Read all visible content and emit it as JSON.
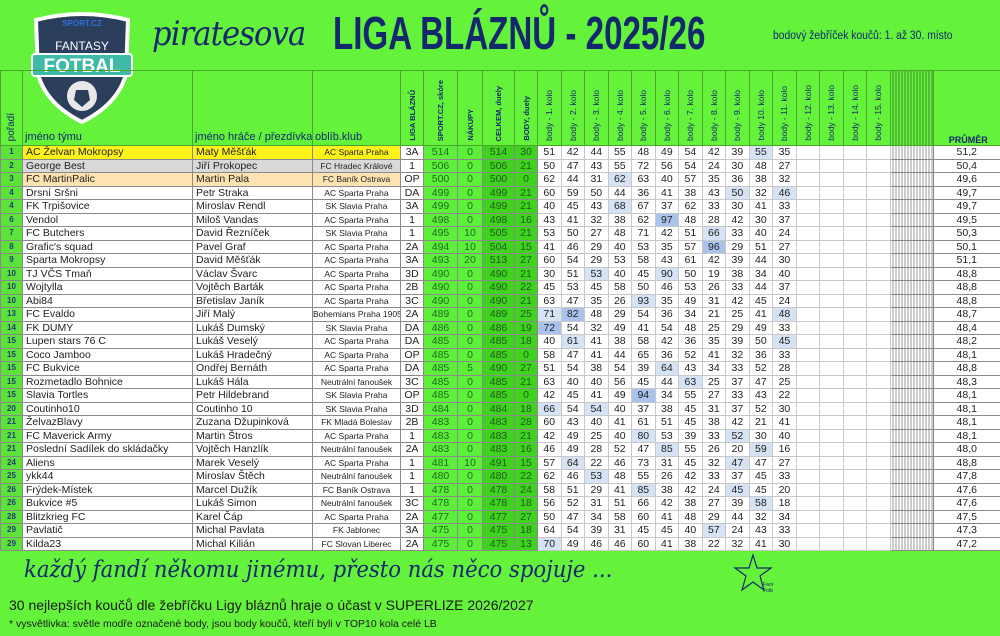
{
  "logo": {
    "top": "SPORT.CZ",
    "mid": "FANTASY",
    "main": "FOTBAL"
  },
  "brand": "piratesova",
  "title": "LIGA BLÁZNŮ -  2025/26",
  "subtitle": "bodový žebříček koučů: 1. až 30. místo",
  "headers": {
    "rank": "pořadí",
    "team": "jméno týmu",
    "player": "jméno hráče / přezdívka",
    "club": "oblíb.klub",
    "liga": "LIGA BLÁZNŮ",
    "sport": "SPORT.CZ, skóre",
    "nakupy": "NÁKUPY",
    "celkem": "CELKEM, duely",
    "body": "BODY, duely",
    "rounds": [
      "body - 1. kolo",
      "body - 2. kolo",
      "body - 3. kolo",
      "body - 4. kolo",
      "body - 5. kolo",
      "body - 6. kolo",
      "body - 7. kolo",
      "body - 8. kolo",
      "body - 9. kolo",
      "body 10. kolo",
      "body - 11. kolo",
      "body - 12. kolo",
      "body - 13. kolo",
      "body - 14. kolo",
      "body - 15. kolo"
    ],
    "avg": "PRŮMĚR"
  },
  "colors": {
    "background": "#64f23b",
    "title": "#14286e",
    "highlight_light": "#d5e3f5",
    "highlight_dark": "#a9c3ec",
    "first": "#fff31a",
    "second": "#d9d9d9",
    "third": "#fde3b0"
  },
  "rows": [
    {
      "rank": "1",
      "team": "AC Želvan Mokropsy",
      "player": "Maty Měšťák",
      "club": "AC Sparta Praha",
      "liga": "3A",
      "sport": "514",
      "nakupy": "0",
      "celkem": "514",
      "body": "30",
      "rounds": [
        "51",
        "42",
        "44",
        "55",
        "48",
        "49",
        "54",
        "42",
        "39",
        "55",
        "35"
      ],
      "avg": "51,2",
      "light": [
        10
      ],
      "dark": []
    },
    {
      "rank": "2",
      "team": "George Best",
      "player": "Jiří Prokopec",
      "club": "FC Hradec Králové",
      "liga": "1",
      "sport": "506",
      "nakupy": "0",
      "celkem": "506",
      "body": "21",
      "rounds": [
        "50",
        "47",
        "43",
        "55",
        "72",
        "56",
        "54",
        "24",
        "30",
        "48",
        "27"
      ],
      "avg": "50,4",
      "light": [],
      "dark": []
    },
    {
      "rank": "3",
      "team": "FC MartinPalic",
      "player": "Martin Pala",
      "club": "FC Baník Ostrava",
      "liga": "OP",
      "sport": "500",
      "nakupy": "0",
      "celkem": "500",
      "body": "0",
      "rounds": [
        "62",
        "44",
        "31",
        "62",
        "63",
        "40",
        "57",
        "35",
        "36",
        "38",
        "32"
      ],
      "avg": "49,6",
      "light": [
        4
      ],
      "dark": []
    },
    {
      "rank": "4",
      "team": "Drsní Sršni",
      "player": "Petr Straka",
      "club": "AC Sparta Praha",
      "liga": "DA",
      "sport": "499",
      "nakupy": "0",
      "celkem": "499",
      "body": "21",
      "rounds": [
        "60",
        "59",
        "50",
        "44",
        "36",
        "41",
        "38",
        "43",
        "50",
        "32",
        "46"
      ],
      "avg": "49,7",
      "light": [
        9,
        11
      ],
      "dark": []
    },
    {
      "rank": "4",
      "team": "FK Trpišovice",
      "player": "Miroslav Rendl",
      "club": "SK Slavia Praha",
      "liga": "3A",
      "sport": "499",
      "nakupy": "0",
      "celkem": "499",
      "body": "21",
      "rounds": [
        "40",
        "45",
        "43",
        "68",
        "67",
        "37",
        "62",
        "33",
        "30",
        "41",
        "33"
      ],
      "avg": "49,7",
      "light": [
        4
      ],
      "dark": []
    },
    {
      "rank": "6",
      "team": "Vendol",
      "player": "Miloš Vandas",
      "club": "AC Sparta Praha",
      "liga": "1",
      "sport": "498",
      "nakupy": "0",
      "celkem": "498",
      "body": "16",
      "rounds": [
        "43",
        "41",
        "32",
        "38",
        "62",
        "97",
        "48",
        "28",
        "42",
        "30",
        "37"
      ],
      "avg": "49,5",
      "light": [],
      "dark": [
        6
      ]
    },
    {
      "rank": "7",
      "team": "FC Butchers",
      "player": "David Řezníček",
      "club": "SK Slavia Praha",
      "liga": "1",
      "sport": "495",
      "nakupy": "10",
      "celkem": "505",
      "body": "21",
      "rounds": [
        "53",
        "50",
        "27",
        "48",
        "71",
        "42",
        "51",
        "66",
        "33",
        "40",
        "24"
      ],
      "avg": "50,3",
      "light": [
        8
      ],
      "dark": []
    },
    {
      "rank": "8",
      "team": "Grafic's squad",
      "player": "Pavel Graf",
      "club": "AC Sparta Praha",
      "liga": "2A",
      "sport": "494",
      "nakupy": "10",
      "celkem": "504",
      "body": "15",
      "rounds": [
        "41",
        "46",
        "29",
        "40",
        "53",
        "35",
        "57",
        "96",
        "29",
        "51",
        "27"
      ],
      "avg": "50,1",
      "light": [],
      "dark": [
        8
      ]
    },
    {
      "rank": "9",
      "team": "Sparta Mokropsy",
      "player": "David Měšťák",
      "club": "AC Sparta Praha",
      "liga": "3A",
      "sport": "493",
      "nakupy": "20",
      "celkem": "513",
      "body": "27",
      "rounds": [
        "60",
        "54",
        "29",
        "53",
        "58",
        "43",
        "61",
        "42",
        "39",
        "44",
        "30"
      ],
      "avg": "51,1",
      "light": [],
      "dark": []
    },
    {
      "rank": "10",
      "team": "TJ VČS Tmaň",
      "player": "Václav Švarc",
      "club": "AC Sparta Praha",
      "liga": "3D",
      "sport": "490",
      "nakupy": "0",
      "celkem": "490",
      "body": "21",
      "rounds": [
        "30",
        "51",
        "53",
        "40",
        "45",
        "90",
        "50",
        "19",
        "38",
        "34",
        "40"
      ],
      "avg": "48,8",
      "light": [
        3,
        6
      ],
      "dark": []
    },
    {
      "rank": "10",
      "team": "Wojtylla",
      "player": "Vojtěch Barták",
      "club": "AC Sparta Praha",
      "liga": "2B",
      "sport": "490",
      "nakupy": "0",
      "celkem": "490",
      "body": "22",
      "rounds": [
        "45",
        "53",
        "45",
        "58",
        "50",
        "46",
        "53",
        "26",
        "33",
        "44",
        "37"
      ],
      "avg": "48,8",
      "light": [],
      "dark": []
    },
    {
      "rank": "10",
      "team": "Abi84",
      "player": "Břetislav Janík",
      "club": "AC Sparta Praha",
      "liga": "3C",
      "sport": "490",
      "nakupy": "0",
      "celkem": "490",
      "body": "21",
      "rounds": [
        "63",
        "47",
        "35",
        "26",
        "93",
        "35",
        "49",
        "31",
        "42",
        "45",
        "24"
      ],
      "avg": "48,8",
      "light": [
        5
      ],
      "dark": []
    },
    {
      "rank": "13",
      "team": "FC Evaldo",
      "player": "Jiří Malý",
      "club": "Bohemians Praha 1905",
      "liga": "2A",
      "sport": "489",
      "nakupy": "0",
      "celkem": "489",
      "body": "25",
      "rounds": [
        "71",
        "82",
        "48",
        "29",
        "54",
        "36",
        "34",
        "21",
        "25",
        "41",
        "48"
      ],
      "avg": "48,7",
      "light": [
        1,
        11
      ],
      "dark": [
        2
      ]
    },
    {
      "rank": "14",
      "team": "FK DUMY",
      "player": "Lukáš Dumský",
      "club": "SK Slavia Praha",
      "liga": "DA",
      "sport": "486",
      "nakupy": "0",
      "celkem": "486",
      "body": "19",
      "rounds": [
        "72",
        "54",
        "32",
        "49",
        "41",
        "54",
        "48",
        "25",
        "29",
        "49",
        "33"
      ],
      "avg": "48,4",
      "light": [],
      "dark": [
        1
      ]
    },
    {
      "rank": "15",
      "team": "Lupen stars 76 C",
      "player": "Lukáš Veselý",
      "club": "AC Sparta Praha",
      "liga": "DA",
      "sport": "485",
      "nakupy": "0",
      "celkem": "485",
      "body": "18",
      "rounds": [
        "40",
        "61",
        "41",
        "38",
        "58",
        "42",
        "36",
        "35",
        "39",
        "50",
        "45"
      ],
      "avg": "48,2",
      "light": [
        2,
        11
      ],
      "dark": []
    },
    {
      "rank": "15",
      "team": "Coco Jamboo",
      "player": "Lukáš Hradečný",
      "club": "AC Sparta Praha",
      "liga": "OP",
      "sport": "485",
      "nakupy": "0",
      "celkem": "485",
      "body": "0",
      "rounds": [
        "58",
        "47",
        "41",
        "44",
        "65",
        "36",
        "52",
        "41",
        "32",
        "36",
        "33"
      ],
      "avg": "48,1",
      "light": [],
      "dark": []
    },
    {
      "rank": "15",
      "team": "FC Bukvice",
      "player": "Ondřej Bernáth",
      "club": "AC Sparta Praha",
      "liga": "DA",
      "sport": "485",
      "nakupy": "5",
      "celkem": "490",
      "body": "27",
      "rounds": [
        "51",
        "54",
        "38",
        "54",
        "39",
        "64",
        "43",
        "34",
        "33",
        "52",
        "28"
      ],
      "avg": "48,8",
      "light": [
        6
      ],
      "dark": []
    },
    {
      "rank": "15",
      "team": "Rozmetadlo Bohnice",
      "player": "Lukáš Hála",
      "club": "Neutrální fanoušek",
      "liga": "3C",
      "sport": "485",
      "nakupy": "0",
      "celkem": "485",
      "body": "21",
      "rounds": [
        "63",
        "40",
        "40",
        "56",
        "45",
        "44",
        "63",
        "25",
        "37",
        "47",
        "25"
      ],
      "avg": "48,3",
      "light": [
        7
      ],
      "dark": []
    },
    {
      "rank": "15",
      "team": "Slavia Tortles",
      "player": "Petr Hildebrand",
      "club": "SK Slavia Praha",
      "liga": "OP",
      "sport": "485",
      "nakupy": "0",
      "celkem": "485",
      "body": "0",
      "rounds": [
        "42",
        "45",
        "41",
        "49",
        "94",
        "34",
        "55",
        "27",
        "33",
        "43",
        "22"
      ],
      "avg": "48,1",
      "light": [],
      "dark": [
        5
      ]
    },
    {
      "rank": "20",
      "team": "Coutinho10",
      "player": "Coutinho 10",
      "club": "SK Slavia Praha",
      "liga": "3D",
      "sport": "484",
      "nakupy": "0",
      "celkem": "484",
      "body": "18",
      "rounds": [
        "66",
        "54",
        "54",
        "40",
        "37",
        "38",
        "45",
        "31",
        "37",
        "52",
        "30"
      ],
      "avg": "48,1",
      "light": [
        1,
        3
      ],
      "dark": []
    },
    {
      "rank": "21",
      "team": "ŽelvazBlavy",
      "player": "Zuzana Džupinková",
      "club": "FK Mladá Boleslav",
      "liga": "2B",
      "sport": "483",
      "nakupy": "0",
      "celkem": "483",
      "body": "28",
      "rounds": [
        "60",
        "43",
        "40",
        "41",
        "61",
        "51",
        "45",
        "38",
        "42",
        "21",
        "41"
      ],
      "avg": "48,1",
      "light": [],
      "dark": []
    },
    {
      "rank": "21",
      "team": "FC Maverick Army",
      "player": "Martin Štros",
      "club": "AC Sparta Praha",
      "liga": "1",
      "sport": "483",
      "nakupy": "0",
      "celkem": "483",
      "body": "21",
      "rounds": [
        "42",
        "49",
        "25",
        "40",
        "80",
        "53",
        "39",
        "33",
        "52",
        "30",
        "40"
      ],
      "avg": "48,1",
      "light": [
        5,
        9
      ],
      "dark": []
    },
    {
      "rank": "21",
      "team": "Poslední Sadílek do skládačky",
      "player": "Vojtěch Hanzlík",
      "club": "Neutrální fanoušek",
      "liga": "2A",
      "sport": "483",
      "nakupy": "0",
      "celkem": "483",
      "body": "16",
      "rounds": [
        "46",
        "49",
        "28",
        "52",
        "47",
        "85",
        "55",
        "26",
        "20",
        "59",
        "16"
      ],
      "avg": "48,0",
      "light": [
        6,
        10
      ],
      "dark": []
    },
    {
      "rank": "24",
      "team": "Aliens",
      "player": "Marek Veselý",
      "club": "AC Sparta Praha",
      "liga": "1",
      "sport": "481",
      "nakupy": "10",
      "celkem": "491",
      "body": "15",
      "rounds": [
        "57",
        "64",
        "22",
        "46",
        "73",
        "31",
        "45",
        "32",
        "47",
        "47",
        "27"
      ],
      "avg": "48,8",
      "light": [
        2,
        9
      ],
      "dark": []
    },
    {
      "rank": "25",
      "team": "ykk44",
      "player": "Miroslav Štěch",
      "club": "Neutrální fanoušek",
      "liga": "1",
      "sport": "480",
      "nakupy": "0",
      "celkem": "480",
      "body": "22",
      "rounds": [
        "62",
        "46",
        "53",
        "48",
        "55",
        "26",
        "42",
        "33",
        "37",
        "45",
        "33"
      ],
      "avg": "47,8",
      "light": [
        3
      ],
      "dark": []
    },
    {
      "rank": "26",
      "team": "Frýdek-Místek",
      "player": "Marcel Dužík",
      "club": "FC Baník Ostrava",
      "liga": "1",
      "sport": "478",
      "nakupy": "0",
      "celkem": "478",
      "body": "24",
      "rounds": [
        "58",
        "51",
        "29",
        "41",
        "85",
        "38",
        "42",
        "24",
        "45",
        "45",
        "20"
      ],
      "avg": "47,6",
      "light": [
        5,
        9
      ],
      "dark": []
    },
    {
      "rank": "26",
      "team": "Bukvice #5",
      "player": "Lukáš Simon",
      "club": "Neutrální fanoušek",
      "liga": "3C",
      "sport": "478",
      "nakupy": "0",
      "celkem": "478",
      "body": "18",
      "rounds": [
        "56",
        "52",
        "31",
        "51",
        "66",
        "42",
        "38",
        "27",
        "39",
        "58",
        "18"
      ],
      "avg": "47,6",
      "light": [
        10
      ],
      "dark": []
    },
    {
      "rank": "28",
      "team": "Blitzkrieg FC",
      "player": "Karel Čáp",
      "club": "AC Sparta Praha",
      "liga": "2A",
      "sport": "477",
      "nakupy": "0",
      "celkem": "477",
      "body": "27",
      "rounds": [
        "50",
        "47",
        "34",
        "58",
        "60",
        "41",
        "48",
        "29",
        "44",
        "32",
        "34"
      ],
      "avg": "47,5",
      "light": [],
      "dark": []
    },
    {
      "rank": "29",
      "team": "Pavlatič",
      "player": "Michal Pavlata",
      "club": "FK Jablonec",
      "liga": "3A",
      "sport": "475",
      "nakupy": "0",
      "celkem": "475",
      "body": "18",
      "rounds": [
        "64",
        "54",
        "39",
        "31",
        "45",
        "45",
        "40",
        "57",
        "24",
        "43",
        "33"
      ],
      "avg": "47,3",
      "light": [
        8
      ],
      "dark": []
    },
    {
      "rank": "29",
      "team": "Kilda23",
      "player": "Michal Kilián",
      "club": "FC Slovan Liberec",
      "liga": "2A",
      "sport": "475",
      "nakupy": "0",
      "celkem": "475",
      "body": "13",
      "rounds": [
        "70",
        "49",
        "46",
        "46",
        "60",
        "41",
        "38",
        "22",
        "32",
        "41",
        "30"
      ],
      "avg": "47,2",
      "light": [
        1
      ],
      "dark": []
    }
  ],
  "footer": {
    "slogan": "každý fandí někomu jinému, přesto nás něco spojuje ...",
    "star_logo": "Fantasy Fotbal",
    "line1": "30 nejlepších koučů dle žebříčku Ligy bláznů hraje o účast v SUPERLIZE 2026/2027",
    "line2": "* vysvětlivka: světle modře označené body, jsou body koučů, kteří byli v TOP10 kola celé LB"
  }
}
